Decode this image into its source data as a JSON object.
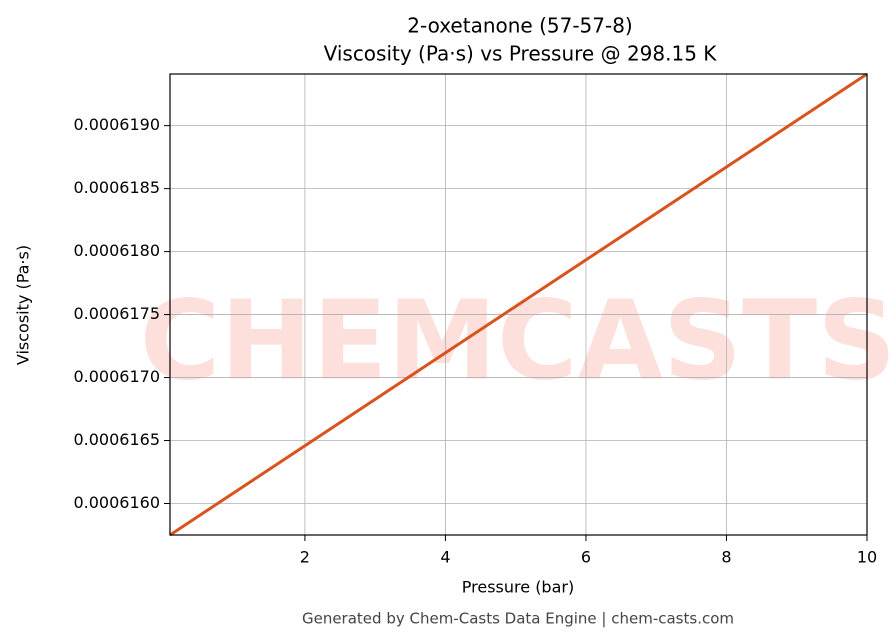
{
  "chart_data": {
    "type": "line",
    "title": "2-oxetanone (57-57-8)",
    "subtitle": "Viscosity (Pa·s) vs Pressure @ 298.15 K",
    "x_label": "Pressure (bar)",
    "y_label": "Viscosity (Pa·s)",
    "watermark": "CHEMCASTS",
    "footer": "Generated by Chem-Casts Data Engine | chem-casts.com",
    "x": [
      0.08,
      10
    ],
    "series": [
      {
        "name": "Viscosity",
        "color": "#d9531e",
        "values": [
          0.00061575,
          0.00061941
        ]
      }
    ],
    "xlim": [
      0.08,
      10
    ],
    "ylim": [
      0.00061575,
      0.00061941
    ],
    "xticks": [
      2,
      4,
      6,
      8,
      10
    ],
    "yticks": [
      {
        "value": 0.000616,
        "label": "0.0006160"
      },
      {
        "value": 0.0006165,
        "label": "0.0006165"
      },
      {
        "value": 0.000617,
        "label": "0.0006170"
      },
      {
        "value": 0.0006175,
        "label": "0.0006175"
      },
      {
        "value": 0.000618,
        "label": "0.0006180"
      },
      {
        "value": 0.0006185,
        "label": "0.0006185"
      },
      {
        "value": 0.000619,
        "label": "0.0006190"
      }
    ],
    "grid": true
  }
}
